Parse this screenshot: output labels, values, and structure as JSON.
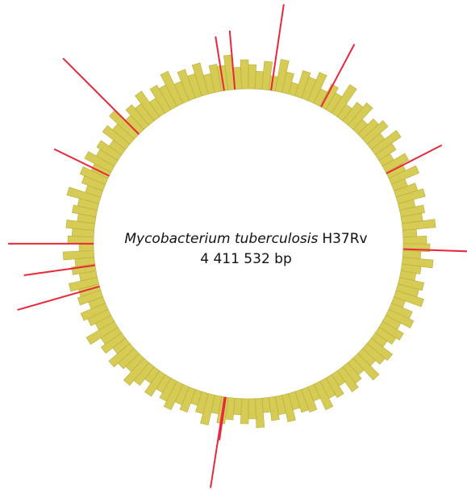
{
  "chart_data": {
    "type": "circular",
    "title_italic": "Mycobacterium tuberculosis",
    "title_strain": "H37Rv",
    "subtitle": "4 411 532 bp",
    "xlim": [
      0,
      4411532
    ],
    "bars": {
      "color": "#d5cb55",
      "values": [
        30,
        22,
        35,
        18,
        40,
        26,
        15,
        33,
        28,
        38,
        20,
        31,
        24,
        42,
        19,
        29,
        36,
        17,
        27,
        34,
        21,
        39,
        25,
        16,
        32,
        23,
        37,
        18,
        28,
        35,
        20,
        30,
        26,
        41,
        17,
        29,
        33,
        22,
        38,
        24,
        19,
        31,
        27,
        36,
        15,
        28,
        34,
        21,
        30,
        25,
        18,
        33,
        29,
        22,
        37,
        20,
        26,
        32,
        17,
        28,
        24,
        35,
        19,
        30,
        27,
        21,
        34,
        23,
        29,
        18,
        36,
        25,
        31,
        20,
        27,
        33,
        22,
        38,
        26,
        18,
        30,
        24,
        35,
        28,
        21,
        32,
        19,
        29,
        37,
        23,
        27,
        34,
        20,
        31,
        25,
        40,
        22,
        28,
        33,
        19,
        30,
        26,
        36,
        21,
        29,
        24,
        38,
        18,
        32,
        27,
        35,
        22,
        30,
        25,
        41,
        20,
        28,
        34,
        23,
        37,
        26,
        31,
        19,
        36,
        28,
        42,
        24,
        33,
        27,
        39,
        22,
        35,
        30,
        44,
        26,
        38,
        29,
        40,
        24,
        34,
        31,
        43,
        27,
        36
      ]
    },
    "highlights": {
      "color": "#e8283c",
      "x": [
        103000,
        343000,
        772000,
        1127000,
        2309000,
        2314000,
        3113000,
        3211000,
        3309000,
        3627000,
        3860000,
        4301000,
        4350000
      ],
      "values": [
        108,
        88,
        77,
        82,
        54,
        114,
        106,
        89,
        106,
        76,
        133,
        68,
        73
      ]
    }
  }
}
